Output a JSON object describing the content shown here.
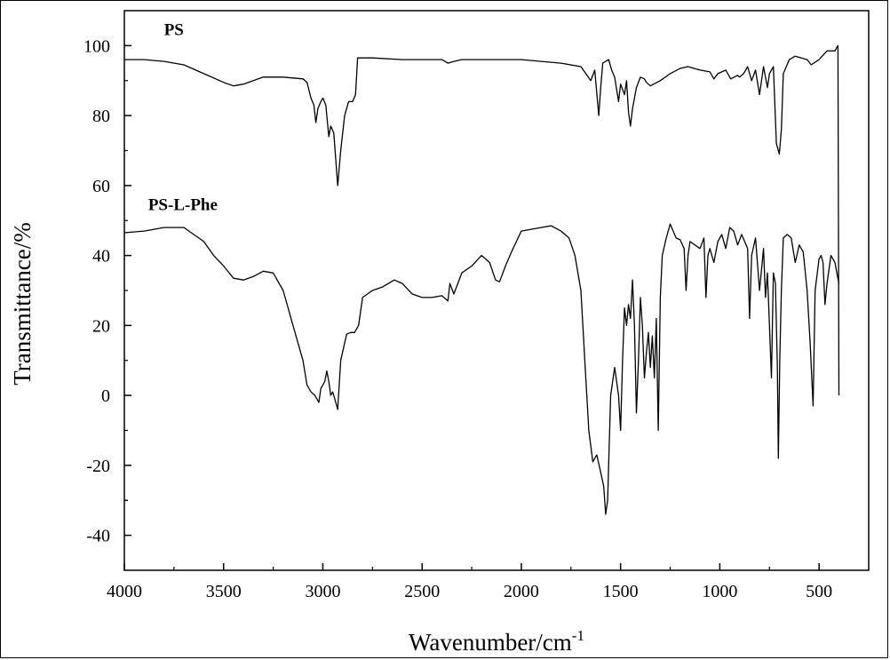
{
  "chart_data": {
    "type": "line",
    "title": "",
    "xlabel": "Wavenumber/cm",
    "xlabel_superscript": "-1",
    "ylabel": "Transmittance/%",
    "xlim": [
      4000,
      250
    ],
    "ylim": [
      -50,
      110
    ],
    "x_ticks": [
      "4000",
      "3500",
      "3000",
      "2500",
      "2000",
      "1500",
      "1000",
      "500"
    ],
    "y_ticks": [
      "100",
      "80",
      "60",
      "40",
      "20",
      "0",
      "-20",
      "-40"
    ],
    "grid": false,
    "legend": "none",
    "annotations": [
      {
        "text": "PS",
        "x": 3800,
        "y": 103
      },
      {
        "text": "PS-L-Phe",
        "x": 3880,
        "y": 53
      }
    ],
    "series": [
      {
        "label_ref": "PS",
        "color": "#000000",
        "points": [
          [
            4000,
            96
          ],
          [
            3900,
            96
          ],
          [
            3800,
            95.5
          ],
          [
            3700,
            94.5
          ],
          [
            3600,
            92
          ],
          [
            3500,
            89.5
          ],
          [
            3450,
            88.5
          ],
          [
            3400,
            89
          ],
          [
            3300,
            91
          ],
          [
            3200,
            91
          ],
          [
            3100,
            90.5
          ],
          [
            3080,
            89.5
          ],
          [
            3060,
            85
          ],
          [
            3045,
            83
          ],
          [
            3035,
            78
          ],
          [
            3025,
            82
          ],
          [
            3010,
            84
          ],
          [
            3000,
            85
          ],
          [
            2985,
            83
          ],
          [
            2970,
            74
          ],
          [
            2960,
            77
          ],
          [
            2945,
            75
          ],
          [
            2925,
            60
          ],
          [
            2910,
            70
          ],
          [
            2890,
            80
          ],
          [
            2870,
            84
          ],
          [
            2850,
            84
          ],
          [
            2835,
            86
          ],
          [
            2825,
            96.5
          ],
          [
            2750,
            96.5
          ],
          [
            2600,
            96
          ],
          [
            2400,
            96
          ],
          [
            2370,
            95
          ],
          [
            2340,
            95.5
          ],
          [
            2300,
            96
          ],
          [
            2000,
            96
          ],
          [
            1800,
            95
          ],
          [
            1700,
            94
          ],
          [
            1650,
            90
          ],
          [
            1630,
            93
          ],
          [
            1610,
            80
          ],
          [
            1600,
            88
          ],
          [
            1590,
            95
          ],
          [
            1560,
            96
          ],
          [
            1545,
            93
          ],
          [
            1530,
            91
          ],
          [
            1510,
            84
          ],
          [
            1500,
            89
          ],
          [
            1480,
            86
          ],
          [
            1470,
            90
          ],
          [
            1460,
            81
          ],
          [
            1450,
            77
          ],
          [
            1440,
            82
          ],
          [
            1420,
            88
          ],
          [
            1400,
            91
          ],
          [
            1380,
            90.5
          ],
          [
            1370,
            89.5
          ],
          [
            1350,
            88.5
          ],
          [
            1300,
            90
          ],
          [
            1250,
            92
          ],
          [
            1200,
            93.5
          ],
          [
            1160,
            94
          ],
          [
            1100,
            93
          ],
          [
            1050,
            92.5
          ],
          [
            1030,
            90.5
          ],
          [
            1010,
            92
          ],
          [
            970,
            93
          ],
          [
            945,
            90.5
          ],
          [
            910,
            91.5
          ],
          [
            900,
            91
          ],
          [
            880,
            92
          ],
          [
            860,
            94
          ],
          [
            840,
            90
          ],
          [
            820,
            93
          ],
          [
            800,
            86
          ],
          [
            780,
            94
          ],
          [
            760,
            88
          ],
          [
            750,
            92
          ],
          [
            730,
            94
          ],
          [
            715,
            72
          ],
          [
            700,
            69
          ],
          [
            690,
            76
          ],
          [
            680,
            92
          ],
          [
            650,
            96
          ],
          [
            620,
            97
          ],
          [
            560,
            96
          ],
          [
            540,
            94.5
          ],
          [
            500,
            96
          ],
          [
            460,
            98.5
          ],
          [
            420,
            98.5
          ],
          [
            410,
            99.5
          ],
          [
            405,
            100
          ],
          [
            400,
            0
          ]
        ]
      },
      {
        "label_ref": "PS-L-Phe",
        "color": "#000000",
        "points": [
          [
            4000,
            46.5
          ],
          [
            3900,
            47
          ],
          [
            3800,
            48
          ],
          [
            3700,
            48
          ],
          [
            3600,
            44
          ],
          [
            3550,
            40
          ],
          [
            3500,
            37
          ],
          [
            3450,
            33.5
          ],
          [
            3400,
            33
          ],
          [
            3350,
            34
          ],
          [
            3300,
            35.5
          ],
          [
            3250,
            35
          ],
          [
            3200,
            30
          ],
          [
            3150,
            20
          ],
          [
            3100,
            10
          ],
          [
            3080,
            3
          ],
          [
            3060,
            1
          ],
          [
            3040,
            0
          ],
          [
            3020,
            -2
          ],
          [
            3010,
            2
          ],
          [
            2990,
            4
          ],
          [
            2980,
            7
          ],
          [
            2970,
            4
          ],
          [
            2960,
            0
          ],
          [
            2950,
            1
          ],
          [
            2940,
            -1
          ],
          [
            2925,
            -4
          ],
          [
            2910,
            10
          ],
          [
            2890,
            15
          ],
          [
            2880,
            17.5
          ],
          [
            2860,
            18
          ],
          [
            2840,
            18
          ],
          [
            2820,
            20
          ],
          [
            2800,
            28
          ],
          [
            2750,
            30
          ],
          [
            2700,
            31
          ],
          [
            2640,
            33
          ],
          [
            2600,
            32
          ],
          [
            2550,
            29
          ],
          [
            2500,
            28
          ],
          [
            2450,
            28
          ],
          [
            2400,
            28.5
          ],
          [
            2370,
            27
          ],
          [
            2360,
            32
          ],
          [
            2340,
            29
          ],
          [
            2300,
            35
          ],
          [
            2250,
            37
          ],
          [
            2200,
            40
          ],
          [
            2160,
            38
          ],
          [
            2130,
            33
          ],
          [
            2110,
            32.5
          ],
          [
            2080,
            37
          ],
          [
            2050,
            41
          ],
          [
            2000,
            47
          ],
          [
            1950,
            47.5
          ],
          [
            1900,
            48
          ],
          [
            1850,
            48.5
          ],
          [
            1800,
            47
          ],
          [
            1760,
            45
          ],
          [
            1730,
            40
          ],
          [
            1700,
            30
          ],
          [
            1680,
            10
          ],
          [
            1660,
            -10
          ],
          [
            1640,
            -19
          ],
          [
            1620,
            -17
          ],
          [
            1600,
            -22
          ],
          [
            1585,
            -26
          ],
          [
            1575,
            -34
          ],
          [
            1565,
            -30
          ],
          [
            1550,
            0
          ],
          [
            1530,
            8
          ],
          [
            1510,
            0
          ],
          [
            1500,
            -10
          ],
          [
            1490,
            10
          ],
          [
            1480,
            25
          ],
          [
            1470,
            20
          ],
          [
            1460,
            26
          ],
          [
            1450,
            22
          ],
          [
            1440,
            33
          ],
          [
            1430,
            20
          ],
          [
            1420,
            -5
          ],
          [
            1410,
            10
          ],
          [
            1400,
            28
          ],
          [
            1390,
            20
          ],
          [
            1380,
            5
          ],
          [
            1370,
            12
          ],
          [
            1360,
            18
          ],
          [
            1350,
            8
          ],
          [
            1340,
            17
          ],
          [
            1330,
            5
          ],
          [
            1320,
            22
          ],
          [
            1310,
            -10
          ],
          [
            1300,
            28
          ],
          [
            1290,
            40
          ],
          [
            1270,
            45
          ],
          [
            1250,
            49
          ],
          [
            1220,
            45
          ],
          [
            1200,
            44.5
          ],
          [
            1180,
            42
          ],
          [
            1170,
            30
          ],
          [
            1160,
            40
          ],
          [
            1150,
            44
          ],
          [
            1100,
            42
          ],
          [
            1080,
            45
          ],
          [
            1070,
            28
          ],
          [
            1060,
            40
          ],
          [
            1050,
            42
          ],
          [
            1030,
            38
          ],
          [
            1010,
            44
          ],
          [
            990,
            46
          ],
          [
            970,
            42
          ],
          [
            950,
            48
          ],
          [
            930,
            47
          ],
          [
            910,
            43
          ],
          [
            890,
            46
          ],
          [
            860,
            42
          ],
          [
            850,
            22
          ],
          [
            840,
            40
          ],
          [
            820,
            45
          ],
          [
            800,
            30
          ],
          [
            780,
            42
          ],
          [
            770,
            28
          ],
          [
            760,
            35
          ],
          [
            750,
            20
          ],
          [
            740,
            5
          ],
          [
            730,
            35
          ],
          [
            720,
            32
          ],
          [
            710,
            8
          ],
          [
            705,
            -18
          ],
          [
            698,
            10
          ],
          [
            690,
            30
          ],
          [
            680,
            45
          ],
          [
            660,
            46
          ],
          [
            640,
            45
          ],
          [
            620,
            38
          ],
          [
            600,
            43
          ],
          [
            580,
            41
          ],
          [
            560,
            30
          ],
          [
            545,
            15
          ],
          [
            530,
            -3
          ],
          [
            520,
            30
          ],
          [
            500,
            39
          ],
          [
            490,
            40
          ],
          [
            480,
            38
          ],
          [
            470,
            26
          ],
          [
            460,
            32
          ],
          [
            440,
            40
          ],
          [
            420,
            38
          ],
          [
            410,
            35
          ],
          [
            400,
            32
          ]
        ]
      }
    ]
  }
}
